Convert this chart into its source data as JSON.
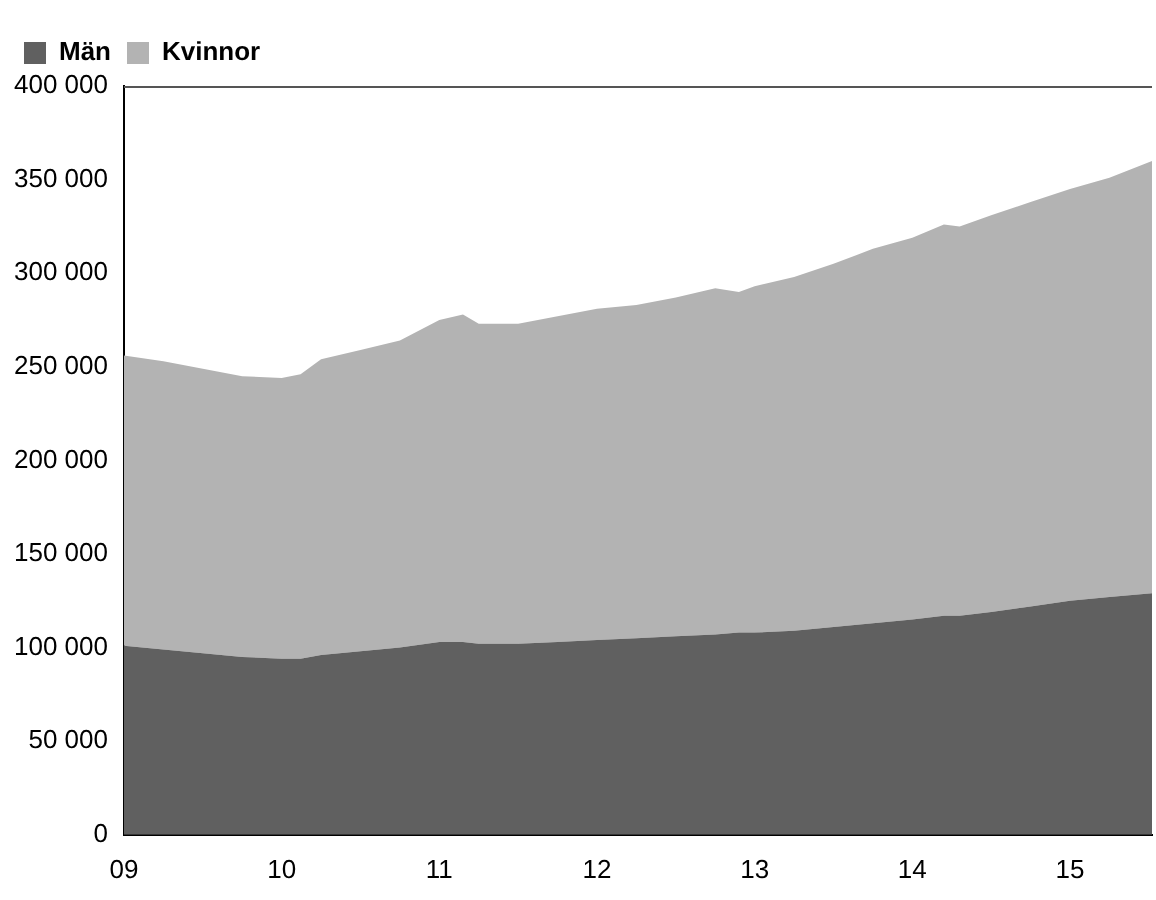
{
  "chart_data": {
    "type": "area",
    "stacked": true,
    "legend": "top left",
    "grid": false,
    "marker": "none",
    "x": [
      9,
      9.25,
      9.5,
      9.75,
      10,
      10.12,
      10.25,
      10.5,
      10.75,
      11,
      11.15,
      11.25,
      11.5,
      11.75,
      12,
      12.25,
      12.5,
      12.75,
      12.9,
      13,
      13.25,
      13.5,
      13.75,
      14,
      14.2,
      14.3,
      14.5,
      14.75,
      15,
      15.25,
      15.52
    ],
    "series": [
      {
        "name": "Män",
        "color": "#606060",
        "values": [
          101000,
          99000,
          97000,
          95000,
          94000,
          94000,
          96000,
          98000,
          100000,
          103000,
          103000,
          102000,
          102000,
          103000,
          104000,
          105000,
          106000,
          107000,
          108000,
          108000,
          109000,
          111000,
          113000,
          115000,
          117000,
          117000,
          119000,
          122000,
          125000,
          127000,
          129000
        ]
      },
      {
        "name": "Kvinnor",
        "color": "#b3b3b3",
        "values": [
          155000,
          154000,
          152000,
          150000,
          150000,
          152000,
          158000,
          161000,
          164000,
          172000,
          175000,
          171000,
          171000,
          174000,
          177000,
          178000,
          181000,
          185000,
          182000,
          185000,
          189000,
          194000,
          200000,
          204000,
          209000,
          208000,
          212000,
          216000,
          220000,
          224000,
          231000
        ]
      }
    ],
    "xlim": [
      9,
      15.52
    ],
    "xticks": [
      {
        "value": 9,
        "label": "09"
      },
      10,
      11,
      12,
      13,
      14,
      15
    ],
    "ylim": [
      0,
      400000
    ],
    "yticks": [
      {
        "value": 0,
        "label": "0"
      },
      {
        "value": 50000,
        "label": "50 000"
      },
      {
        "value": 100000,
        "label": "100 000"
      },
      {
        "value": 150000,
        "label": "150 000"
      },
      {
        "value": 200000,
        "label": "200 000"
      },
      {
        "value": 250000,
        "label": "250 000"
      },
      {
        "value": 300000,
        "label": "300 000"
      },
      {
        "value": 350000,
        "label": "350 000"
      },
      {
        "value": 400000,
        "label": "400 000"
      }
    ]
  }
}
